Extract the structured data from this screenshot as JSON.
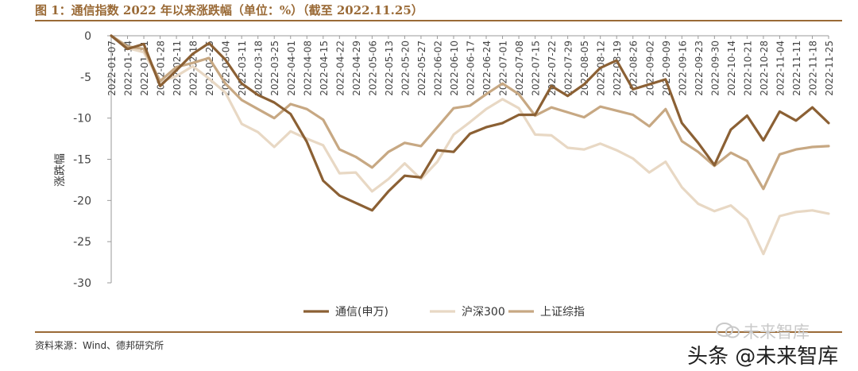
{
  "figure": {
    "title": "图 1：通信指数 2022 年以来涨跌幅（单位：%）（截至 2022.11.25）",
    "source": "资料来源：Wind、德邦研究所"
  },
  "watermarks": {
    "wechat_text": "未来智库",
    "toutiao_text": "头条 @未来智库",
    "wechat_icon": "wechat-icon"
  },
  "colors": {
    "series_1": "#8b6034",
    "series_2": "#e8d8c4",
    "series_3": "#c7a883",
    "axis": "#9a9a9a",
    "title": "#9a6a36"
  },
  "chart_data": {
    "type": "line",
    "ylabel": "涨跌幅",
    "ylim": [
      -30,
      0
    ],
    "yticks": [
      0,
      -5,
      -10,
      -15,
      -20,
      -25,
      -30
    ],
    "x_ticks": [
      "2022-01-07",
      "2022-01-14",
      "2022-01-21",
      "2022-01-28",
      "2022-02-11",
      "2022-02-18",
      "2022-02-25",
      "2022-03-04",
      "2022-03-11",
      "2022-03-18",
      "2022-03-25",
      "2022-04-01",
      "2022-04-08",
      "2022-04-15",
      "2022-04-22",
      "2022-04-29",
      "2022-05-06",
      "2022-05-13",
      "2022-05-20",
      "2022-05-27",
      "2022-06-02",
      "2022-06-10",
      "2022-06-17",
      "2022-06-24",
      "2022-07-01",
      "2022-07-08",
      "2022-07-15",
      "2022-07-22",
      "2022-07-29",
      "2022-08-05",
      "2022-08-12",
      "2022-08-19",
      "2022-08-26",
      "2022-09-02",
      "2022-09-09",
      "2022-09-16",
      "2022-09-23",
      "2022-09-30",
      "2022-10-14",
      "2022-10-21",
      "2022-10-28",
      "2022-11-04",
      "2022-11-11",
      "2022-11-18",
      "2022-11-25"
    ],
    "x_tick_labels": [
      "2022-01-07",
      "2022-01-14",
      "2022-01-21",
      "2022-01-28",
      "2022-02-11",
      "2022-02-18",
      "2022-02-25",
      "2022-03-04",
      "2022-03-11",
      "2022-03-18",
      "2022-03-25",
      "2022-04-01",
      "2022-04-08",
      "2022-04-15",
      "2022-04-22",
      "2022-04-29",
      "2022-05-06",
      "2022-05-13",
      "2022-05-20",
      "2022-05-27",
      "2022-06-02",
      "2022-06-10",
      "2022-06-17",
      "2022-06-24",
      "2022-07-01",
      "2022-07-08",
      "2022-07-15",
      "2022-07-22",
      "2022-07-29",
      "2022-08-05",
      "2022-08-12",
      "2022-08-19",
      "2022-08-26",
      "2022-09-02",
      "2022-09-09",
      "2022-09-16",
      "2022-09-23",
      "2022-09-30",
      "2022-10-14",
      "2022-10-21",
      "2022-10-28",
      "2022-11-04",
      "2022-11-11",
      "2022-11-18",
      "2022-11-25"
    ],
    "series": [
      {
        "name": "通信(申万)",
        "values": [
          0,
          -1.6,
          -1.0,
          -6.1,
          -4.2,
          -2.2,
          -0.9,
          -2.9,
          -5.8,
          -7.2,
          -8.1,
          -9.5,
          -12.9,
          -17.6,
          -19.4,
          -20.3,
          -21.2,
          -18.9,
          -17.0,
          -17.2,
          -13.9,
          -14.1,
          -11.9,
          -11.1,
          -10.6,
          -9.6,
          -9.6,
          -6.1,
          -7.3,
          -5.9,
          -3.9,
          -3.0,
          -6.5,
          -5.9,
          -5.3,
          -10.6,
          -13.0,
          -15.7,
          -11.4,
          -9.7,
          -12.7,
          -9.2,
          -10.3,
          -8.7,
          -10.6
        ]
      },
      {
        "name": "沪深300",
        "values": [
          0,
          -1.5,
          -2.0,
          -5.6,
          -4.9,
          -3.7,
          -5.2,
          -6.9,
          -10.7,
          -11.7,
          -13.5,
          -11.6,
          -12.5,
          -13.3,
          -16.7,
          -16.6,
          -18.9,
          -17.4,
          -15.5,
          -17.4,
          -15.3,
          -12.0,
          -10.5,
          -8.9,
          -7.7,
          -8.8,
          -12.0,
          -12.1,
          -13.6,
          -13.8,
          -13.1,
          -13.9,
          -14.9,
          -16.6,
          -15.3,
          -18.4,
          -20.4,
          -21.3,
          -20.6,
          -22.3,
          -26.5,
          -21.9,
          -21.4,
          -21.2,
          -21.6
        ]
      },
      {
        "name": "上证综指",
        "values": [
          0,
          -1.3,
          -1.6,
          -5.5,
          -3.8,
          -3.3,
          -2.7,
          -5.8,
          -7.8,
          -8.9,
          -10.0,
          -8.3,
          -8.9,
          -10.2,
          -13.8,
          -14.7,
          -16.0,
          -14.1,
          -13.0,
          -13.4,
          -11.1,
          -8.8,
          -8.5,
          -7.1,
          -5.8,
          -7.1,
          -9.7,
          -8.7,
          -9.3,
          -9.9,
          -8.6,
          -9.1,
          -9.6,
          -11.0,
          -8.9,
          -12.8,
          -14.1,
          -15.8,
          -14.2,
          -15.2,
          -18.6,
          -14.4,
          -13.8,
          -13.5,
          -13.4
        ]
      }
    ],
    "legend_position": "bottom",
    "grid": false
  }
}
